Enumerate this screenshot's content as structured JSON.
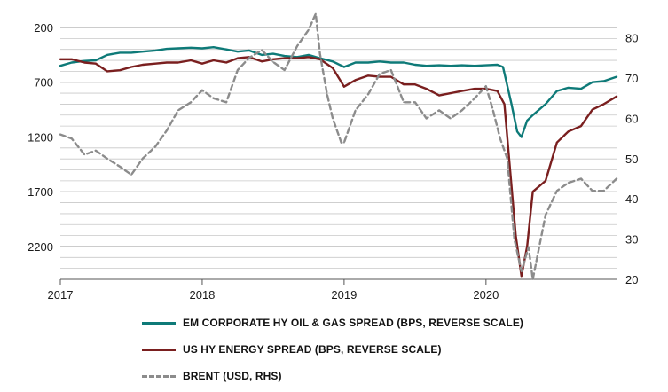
{
  "chart_data": {
    "type": "line",
    "xlabel": "",
    "ylabel": "",
    "x_ticks": [
      "2017",
      "2018",
      "2019",
      "2020"
    ],
    "left_axis": {
      "reversed": true,
      "range": [
        200,
        2500
      ],
      "ticks": [
        "200",
        "700",
        "1200",
        "1700",
        "2200"
      ]
    },
    "right_axis": {
      "range": [
        20,
        85
      ],
      "ticks": [
        "20",
        "30",
        "40",
        "50",
        "60",
        "70",
        "80"
      ]
    },
    "grid": true,
    "legend_position": "bottom",
    "series": [
      {
        "name": "EM CORPORATE HY OIL & GAS SPREAD (BPS, REVERSE SCALE)",
        "axis": "left",
        "color": "#0e7a78",
        "dash": "solid",
        "x": [
          2017.0,
          2017.08,
          2017.17,
          2017.25,
          2017.33,
          2017.42,
          2017.5,
          2017.58,
          2017.67,
          2017.75,
          2017.83,
          2017.92,
          2018.0,
          2018.08,
          2018.17,
          2018.25,
          2018.33,
          2018.42,
          2018.5,
          2018.58,
          2018.67,
          2018.75,
          2018.83,
          2018.92,
          2019.0,
          2019.08,
          2019.17,
          2019.25,
          2019.33,
          2019.42,
          2019.5,
          2019.58,
          2019.67,
          2019.75,
          2019.83,
          2019.92,
          2020.0,
          2020.08,
          2020.12,
          2020.18,
          2020.22,
          2020.25,
          2020.29,
          2020.33,
          2020.42,
          2020.5,
          2020.58,
          2020.67,
          2020.75,
          2020.83,
          2020.92
        ],
        "values": [
          550,
          520,
          505,
          500,
          450,
          430,
          430,
          420,
          410,
          395,
          390,
          385,
          390,
          380,
          400,
          420,
          410,
          450,
          440,
          460,
          470,
          450,
          480,
          510,
          560,
          520,
          520,
          510,
          520,
          520,
          540,
          550,
          545,
          550,
          545,
          550,
          545,
          540,
          560,
          900,
          1150,
          1200,
          1050,
          1000,
          900,
          780,
          750,
          760,
          700,
          690,
          650
        ]
      },
      {
        "name": "US HY ENERGY SPREAD (BPS, REVERSE SCALE)",
        "axis": "left",
        "color": "#7a1f1f",
        "dash": "solid",
        "x": [
          2017.0,
          2017.08,
          2017.17,
          2017.25,
          2017.33,
          2017.42,
          2017.5,
          2017.58,
          2017.67,
          2017.75,
          2017.83,
          2017.92,
          2018.0,
          2018.08,
          2018.17,
          2018.25,
          2018.33,
          2018.42,
          2018.5,
          2018.58,
          2018.67,
          2018.75,
          2018.83,
          2018.92,
          2019.0,
          2019.08,
          2019.17,
          2019.25,
          2019.33,
          2019.42,
          2019.5,
          2019.58,
          2019.67,
          2019.75,
          2019.83,
          2019.92,
          2020.0,
          2020.08,
          2020.13,
          2020.17,
          2020.21,
          2020.25,
          2020.29,
          2020.33,
          2020.42,
          2020.5,
          2020.58,
          2020.67,
          2020.75,
          2020.83,
          2020.92
        ],
        "values": [
          490,
          490,
          520,
          530,
          600,
          590,
          560,
          540,
          530,
          520,
          520,
          500,
          530,
          500,
          520,
          480,
          470,
          510,
          490,
          480,
          480,
          470,
          490,
          570,
          740,
          680,
          640,
          650,
          650,
          720,
          720,
          760,
          820,
          800,
          780,
          760,
          760,
          780,
          900,
          1500,
          2100,
          2470,
          2200,
          1700,
          1600,
          1250,
          1150,
          1100,
          950,
          900,
          830
        ]
      },
      {
        "name": "BRENT (USD, RHS)",
        "axis": "right",
        "color": "#8c8c8c",
        "dash": "dashed",
        "x": [
          2017.0,
          2017.08,
          2017.17,
          2017.25,
          2017.33,
          2017.42,
          2017.5,
          2017.58,
          2017.67,
          2017.75,
          2017.83,
          2017.92,
          2018.0,
          2018.08,
          2018.17,
          2018.25,
          2018.33,
          2018.42,
          2018.5,
          2018.58,
          2018.67,
          2018.75,
          2018.8,
          2018.83,
          2018.88,
          2018.92,
          2018.98,
          2019.0,
          2019.08,
          2019.17,
          2019.25,
          2019.33,
          2019.42,
          2019.5,
          2019.58,
          2019.67,
          2019.75,
          2019.83,
          2019.92,
          2020.0,
          2020.05,
          2020.1,
          2020.15,
          2020.2,
          2020.25,
          2020.3,
          2020.33,
          2020.42,
          2020.5,
          2020.58,
          2020.67,
          2020.75,
          2020.83,
          2020.92
        ],
        "values": [
          56,
          55,
          51,
          52,
          50,
          48,
          46,
          50,
          53,
          57,
          62,
          64,
          67,
          65,
          64,
          72,
          75,
          77,
          74,
          72,
          78,
          82,
          86,
          76,
          66,
          60,
          54,
          54,
          62,
          66,
          71,
          72,
          64,
          64,
          60,
          62,
          60,
          62,
          65,
          68,
          62,
          55,
          50,
          30,
          22,
          28,
          20,
          36,
          42,
          44,
          45,
          42,
          42,
          45
        ]
      }
    ]
  }
}
